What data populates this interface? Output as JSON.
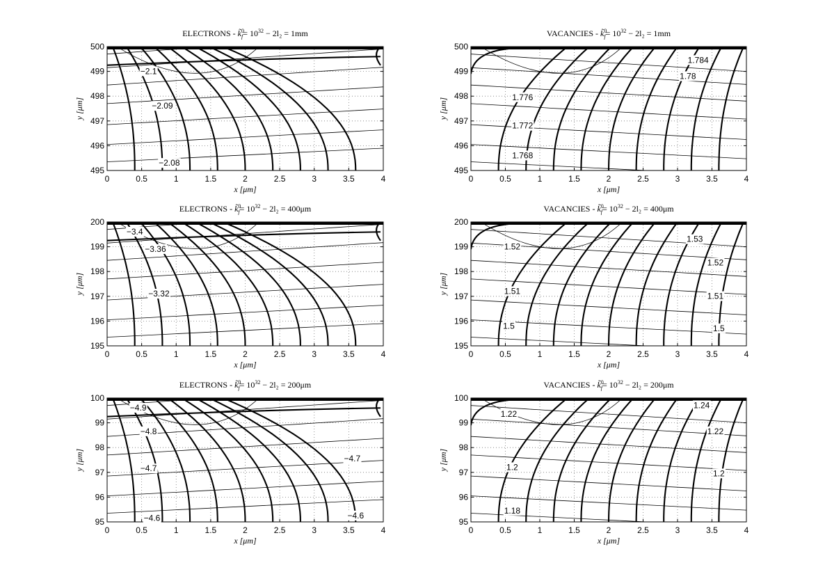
{
  "chart_data": [
    {
      "type": "contour",
      "title": "ELECTRONS - k̃f⁰= 10³² − 2l₂ = 1mm",
      "title_parts": {
        "species": "ELECTRONS",
        "k0": "10",
        "k0_exp": "32",
        "length": "2l₂ = 1mm"
      },
      "xlabel": "x [μm]",
      "ylabel": "y [μm]",
      "xlim": [
        0,
        4
      ],
      "ylim": [
        495,
        500
      ],
      "xticks": [
        "0",
        "0.5",
        "1",
        "1.5",
        "2",
        "2.5",
        "3",
        "3.5",
        "4"
      ],
      "yticks": [
        "495",
        "496",
        "497",
        "498",
        "499",
        "500"
      ],
      "grid": true,
      "contour_labels": [
        {
          "text": "−2.1",
          "x": 0.6,
          "y": 498.95
        },
        {
          "text": "−2.09",
          "x": 0.8,
          "y": 497.55
        },
        {
          "text": "−2.08",
          "x": 0.9,
          "y": 495.25
        }
      ]
    },
    {
      "type": "contour",
      "title": "VACANCIES - k̃f⁰= 10³² − 2l₂ = 1mm",
      "title_parts": {
        "species": "VACANCIES",
        "k0": "10",
        "k0_exp": "32",
        "length": "2l₂ = 1mm"
      },
      "xlabel": "x [μm]",
      "ylabel": "y [μm]",
      "xlim": [
        0,
        4
      ],
      "ylim": [
        495,
        500
      ],
      "xticks": [
        "0",
        "0.5",
        "1",
        "1.5",
        "2",
        "2.5",
        "3",
        "3.5",
        "4"
      ],
      "yticks": [
        "495",
        "496",
        "497",
        "498",
        "499",
        "500"
      ],
      "grid": true,
      "contour_labels": [
        {
          "text": "1.784",
          "x": 3.3,
          "y": 499.4
        },
        {
          "text": "1.78",
          "x": 3.15,
          "y": 498.75
        },
        {
          "text": "1.776",
          "x": 0.75,
          "y": 497.9
        },
        {
          "text": "1.772",
          "x": 0.75,
          "y": 496.75
        },
        {
          "text": "1.768",
          "x": 0.75,
          "y": 495.55
        }
      ]
    },
    {
      "type": "contour",
      "title": "ELECTRONS - k̃f⁰= 10³² − 2l₂ = 400μm",
      "title_parts": {
        "species": "ELECTRONS",
        "k0": "10",
        "k0_exp": "32",
        "length": "2l₂ = 400μm"
      },
      "xlabel": "x [μm]",
      "ylabel": "y [μm]",
      "xlim": [
        0,
        4
      ],
      "ylim": [
        195,
        200
      ],
      "xticks": [
        "0",
        "0.5",
        "1",
        "1.5",
        "2",
        "2.5",
        "3",
        "3.5",
        "4"
      ],
      "yticks": [
        "195",
        "196",
        "197",
        "198",
        "199",
        "200"
      ],
      "grid": true,
      "contour_labels": [
        {
          "text": "−3.4",
          "x": 0.4,
          "y": 199.55
        },
        {
          "text": "−3.36",
          "x": 0.7,
          "y": 198.85
        },
        {
          "text": "−3.32",
          "x": 0.75,
          "y": 197.05
        }
      ]
    },
    {
      "type": "contour",
      "title": "VACANCIES - k̃f⁰= 10³² − 2l₂ = 400μm",
      "title_parts": {
        "species": "VACANCIES",
        "k0": "10",
        "k0_exp": "32",
        "length": "2l₂ = 400μm"
      },
      "xlabel": "x [μm]",
      "ylabel": "y [μm]",
      "xlim": [
        0,
        4
      ],
      "ylim": [
        195,
        200
      ],
      "xticks": [
        "0",
        "0.5",
        "1",
        "1.5",
        "2",
        "2.5",
        "3",
        "3.5",
        "4"
      ],
      "yticks": [
        "195",
        "196",
        "197",
        "198",
        "199",
        "200"
      ],
      "grid": true,
      "contour_labels": [
        {
          "text": "1.53",
          "x": 3.25,
          "y": 199.25
        },
        {
          "text": "1.52",
          "x": 0.6,
          "y": 198.95
        },
        {
          "text": "1.52",
          "x": 3.55,
          "y": 198.3
        },
        {
          "text": "1.51",
          "x": 0.6,
          "y": 197.15
        },
        {
          "text": "1.51",
          "x": 3.55,
          "y": 196.95
        },
        {
          "text": "1.5",
          "x": 0.55,
          "y": 195.75
        },
        {
          "text": "1.5",
          "x": 3.6,
          "y": 195.65
        }
      ]
    },
    {
      "type": "contour",
      "title": "ELECTRONS - k̃f⁰= 10³² − 2l₂ = 200μm",
      "title_parts": {
        "species": "ELECTRONS",
        "k0": "10",
        "k0_exp": "32",
        "length": "2l₂ = 200μm"
      },
      "xlabel": "x [μm]",
      "ylabel": "y [μm]",
      "xlim": [
        0,
        4
      ],
      "ylim": [
        95,
        100
      ],
      "xticks": [
        "0",
        "0.5",
        "1",
        "1.5",
        "2",
        "2.5",
        "3",
        "3.5",
        "4"
      ],
      "yticks": [
        "95",
        "96",
        "97",
        "98",
        "99",
        "100"
      ],
      "grid": true,
      "contour_labels": [
        {
          "text": "−4.9",
          "x": 0.45,
          "y": 99.55
        },
        {
          "text": "−4.8",
          "x": 0.6,
          "y": 98.6
        },
        {
          "text": "−4.7",
          "x": 3.55,
          "y": 97.5
        },
        {
          "text": "−4.7",
          "x": 0.6,
          "y": 97.1
        },
        {
          "text": "−4.6",
          "x": 0.65,
          "y": 95.1
        },
        {
          "text": "−4.6",
          "x": 3.6,
          "y": 95.2
        }
      ]
    },
    {
      "type": "contour",
      "title": "VACANCIES - k̃f⁰= 10³² − 2l₂ = 200μm",
      "title_parts": {
        "species": "VACANCIES",
        "k0": "10",
        "k0_exp": "32",
        "length": "2l₂ = 200μm"
      },
      "xlabel": "x [μm]",
      "ylabel": "y [μm]",
      "xlim": [
        0,
        4
      ],
      "ylim": [
        95,
        100
      ],
      "xticks": [
        "0",
        "0.5",
        "1",
        "1.5",
        "2",
        "2.5",
        "3",
        "3.5",
        "4"
      ],
      "yticks": [
        "95",
        "96",
        "97",
        "98",
        "99",
        "100"
      ],
      "grid": true,
      "contour_labels": [
        {
          "text": "1.24",
          "x": 3.35,
          "y": 99.65
        },
        {
          "text": "1.22",
          "x": 0.55,
          "y": 99.3
        },
        {
          "text": "1.22",
          "x": 3.55,
          "y": 98.6
        },
        {
          "text": "1.2",
          "x": 0.6,
          "y": 97.15
        },
        {
          "text": "1.2",
          "x": 3.6,
          "y": 96.9
        },
        {
          "text": "1.18",
          "x": 0.6,
          "y": 95.4
        }
      ]
    }
  ]
}
